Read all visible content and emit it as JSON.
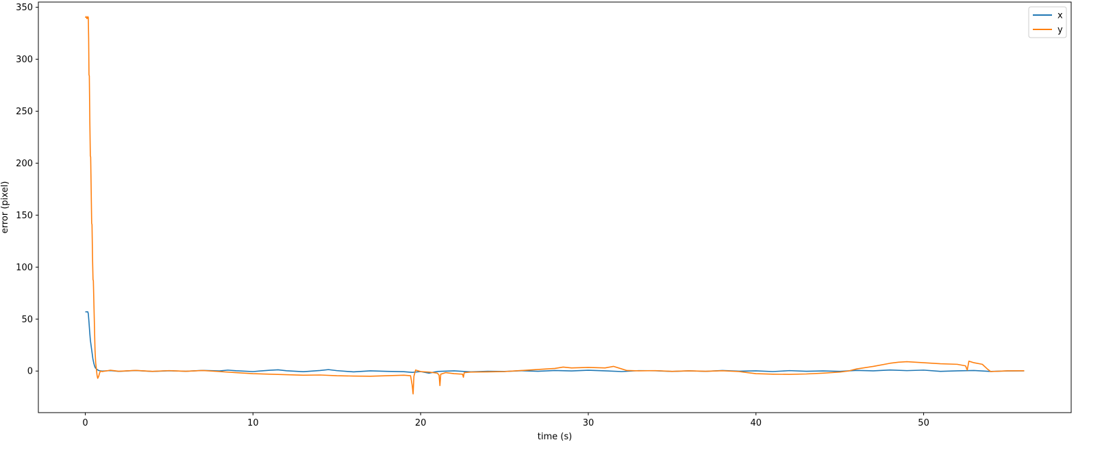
{
  "chart_data": {
    "type": "line",
    "title": "",
    "xlabel": "time (s)",
    "ylabel": "error (pixel)",
    "xlim": [
      -2.8,
      58.8
    ],
    "ylim": [
      -40,
      355
    ],
    "xticks": [
      0,
      10,
      20,
      30,
      40,
      50
    ],
    "yticks": [
      0,
      50,
      100,
      150,
      200,
      250,
      300,
      350
    ],
    "grid": false,
    "legend": "upper-right",
    "series": [
      {
        "name": "x",
        "color": "#1f77b4",
        "points": [
          [
            0,
            57
          ],
          [
            0.12,
            57
          ],
          [
            0.15,
            57
          ],
          [
            0.18,
            55
          ],
          [
            0.22,
            47
          ],
          [
            0.26,
            38
          ],
          [
            0.3,
            30
          ],
          [
            0.35,
            24
          ],
          [
            0.4,
            18
          ],
          [
            0.45,
            12
          ],
          [
            0.5,
            8
          ],
          [
            0.55,
            5
          ],
          [
            0.6,
            3
          ],
          [
            0.7,
            1.5
          ],
          [
            0.8,
            0.5
          ],
          [
            1.0,
            0
          ],
          [
            1.5,
            0.4
          ],
          [
            2.0,
            -0.3
          ],
          [
            3.0,
            0.5
          ],
          [
            4.0,
            -0.4
          ],
          [
            5.0,
            0.3
          ],
          [
            6.0,
            -0.2
          ],
          [
            7.0,
            0.6
          ],
          [
            8.0,
            0.1
          ],
          [
            8.5,
            0.9
          ],
          [
            9.0,
            0.3
          ],
          [
            10.0,
            -0.5
          ],
          [
            11.0,
            0.8
          ],
          [
            11.5,
            1.2
          ],
          [
            12.0,
            0.3
          ],
          [
            13.0,
            -0.6
          ],
          [
            14.0,
            0.5
          ],
          [
            14.5,
            1.4
          ],
          [
            15.0,
            0.4
          ],
          [
            16.0,
            -0.8
          ],
          [
            17.0,
            0.2
          ],
          [
            18.0,
            -0.3
          ],
          [
            19.0,
            -0.6
          ],
          [
            19.5,
            -1.3
          ],
          [
            20.0,
            -0.5
          ],
          [
            20.5,
            -2.0
          ],
          [
            21.0,
            -0.4
          ],
          [
            22.0,
            0.2
          ],
          [
            23.0,
            -0.8
          ],
          [
            24.0,
            -0.2
          ],
          [
            25.0,
            -0.4
          ],
          [
            26.0,
            0.3
          ],
          [
            27.0,
            -0.2
          ],
          [
            28.0,
            0.5
          ],
          [
            29.0,
            0.1
          ],
          [
            30.0,
            0.8
          ],
          [
            31.0,
            0.2
          ],
          [
            32.0,
            -0.5
          ],
          [
            33.0,
            0.4
          ],
          [
            34.0,
            0.3
          ],
          [
            35.0,
            -0.4
          ],
          [
            36.0,
            0.2
          ],
          [
            37.0,
            -0.3
          ],
          [
            38.0,
            0.5
          ],
          [
            39.0,
            -0.1
          ],
          [
            40.0,
            0.2
          ],
          [
            41.0,
            -0.5
          ],
          [
            42.0,
            0.4
          ],
          [
            43.0,
            -0.2
          ],
          [
            44.0,
            0.1
          ],
          [
            45.0,
            -0.3
          ],
          [
            46.0,
            0.6
          ],
          [
            47.0,
            0.2
          ],
          [
            48.0,
            1.0
          ],
          [
            49.0,
            0.4
          ],
          [
            50.0,
            0.9
          ],
          [
            51.0,
            -0.3
          ],
          [
            52.0,
            0.2
          ],
          [
            53.0,
            0.5
          ],
          [
            54.0,
            -0.4
          ],
          [
            55.0,
            0.1
          ],
          [
            56.0,
            0.2
          ]
        ]
      },
      {
        "name": "y",
        "color": "#ff7f0e",
        "points": [
          [
            0,
            340
          ],
          [
            0.05,
            341
          ],
          [
            0.1,
            339
          ],
          [
            0.15,
            341
          ],
          [
            0.18,
            340
          ],
          [
            0.2,
            320
          ],
          [
            0.22,
            285
          ],
          [
            0.24,
            284
          ],
          [
            0.27,
            240
          ],
          [
            0.3,
            207
          ],
          [
            0.32,
            206
          ],
          [
            0.35,
            175
          ],
          [
            0.38,
            142
          ],
          [
            0.4,
            141
          ],
          [
            0.43,
            110
          ],
          [
            0.46,
            88
          ],
          [
            0.48,
            87
          ],
          [
            0.52,
            60
          ],
          [
            0.55,
            40
          ],
          [
            0.58,
            20
          ],
          [
            0.62,
            8
          ],
          [
            0.66,
            2
          ],
          [
            0.7,
            -4
          ],
          [
            0.74,
            -7
          ],
          [
            0.8,
            -5
          ],
          [
            0.85,
            -2
          ],
          [
            0.9,
            0
          ],
          [
            1.0,
            -0.5
          ],
          [
            1.5,
            0.8
          ],
          [
            2.0,
            -0.2
          ],
          [
            3.0,
            0.6
          ],
          [
            4.0,
            -0.3
          ],
          [
            5.0,
            0.4
          ],
          [
            6.0,
            -0.2
          ],
          [
            7.0,
            0.5
          ],
          [
            8.0,
            -0.5
          ],
          [
            9.0,
            -1.5
          ],
          [
            10.0,
            -2.5
          ],
          [
            11.0,
            -3.0
          ],
          [
            12.0,
            -3.5
          ],
          [
            13.0,
            -4.0
          ],
          [
            14.0,
            -3.8
          ],
          [
            15.0,
            -4.5
          ],
          [
            16.0,
            -4.8
          ],
          [
            17.0,
            -5.0
          ],
          [
            18.0,
            -4.5
          ],
          [
            19.0,
            -4.0
          ],
          [
            19.4,
            -4.5
          ],
          [
            19.5,
            -14
          ],
          [
            19.55,
            -22
          ],
          [
            19.6,
            -5
          ],
          [
            19.7,
            1
          ],
          [
            20.0,
            -0.5
          ],
          [
            20.5,
            -1.0
          ],
          [
            21.0,
            -2.0
          ],
          [
            21.1,
            -4
          ],
          [
            21.15,
            -14
          ],
          [
            21.2,
            -3
          ],
          [
            21.5,
            -1.5
          ],
          [
            22.0,
            -2.5
          ],
          [
            22.5,
            -3.0
          ],
          [
            22.55,
            -6
          ],
          [
            22.6,
            -1.5
          ],
          [
            23.0,
            -1.0
          ],
          [
            24.0,
            -0.8
          ],
          [
            25.0,
            -0.5
          ],
          [
            26.0,
            0.5
          ],
          [
            27.0,
            1.5
          ],
          [
            28.0,
            2.5
          ],
          [
            28.5,
            3.8
          ],
          [
            29.0,
            3.0
          ],
          [
            30.0,
            3.5
          ],
          [
            31.0,
            3.0
          ],
          [
            31.5,
            4.5
          ],
          [
            32.0,
            2.0
          ],
          [
            32.3,
            0.5
          ],
          [
            33.0,
            0.2
          ],
          [
            34.0,
            0.4
          ],
          [
            35.0,
            -0.3
          ],
          [
            36.0,
            0.2
          ],
          [
            37.0,
            -0.2
          ],
          [
            38.0,
            0.3
          ],
          [
            39.0,
            -0.5
          ],
          [
            39.5,
            -1.5
          ],
          [
            40.0,
            -2.5
          ],
          [
            41.0,
            -3.0
          ],
          [
            42.0,
            -3.2
          ],
          [
            43.0,
            -2.8
          ],
          [
            44.0,
            -2.0
          ],
          [
            45.0,
            -1.0
          ],
          [
            45.5,
            0
          ],
          [
            46.0,
            2.0
          ],
          [
            47.0,
            4.5
          ],
          [
            48.0,
            7.5
          ],
          [
            48.5,
            8.5
          ],
          [
            49.0,
            9.0
          ],
          [
            50.0,
            8.0
          ],
          [
            51.0,
            7.0
          ],
          [
            52.0,
            6.5
          ],
          [
            52.5,
            5.0
          ],
          [
            52.6,
            1.0
          ],
          [
            52.7,
            9.5
          ],
          [
            53.0,
            8.0
          ],
          [
            53.5,
            6.5
          ],
          [
            53.8,
            2.0
          ],
          [
            54.0,
            -0.5
          ],
          [
            55.0,
            0.2
          ],
          [
            56.0,
            0.3
          ]
        ]
      }
    ]
  }
}
